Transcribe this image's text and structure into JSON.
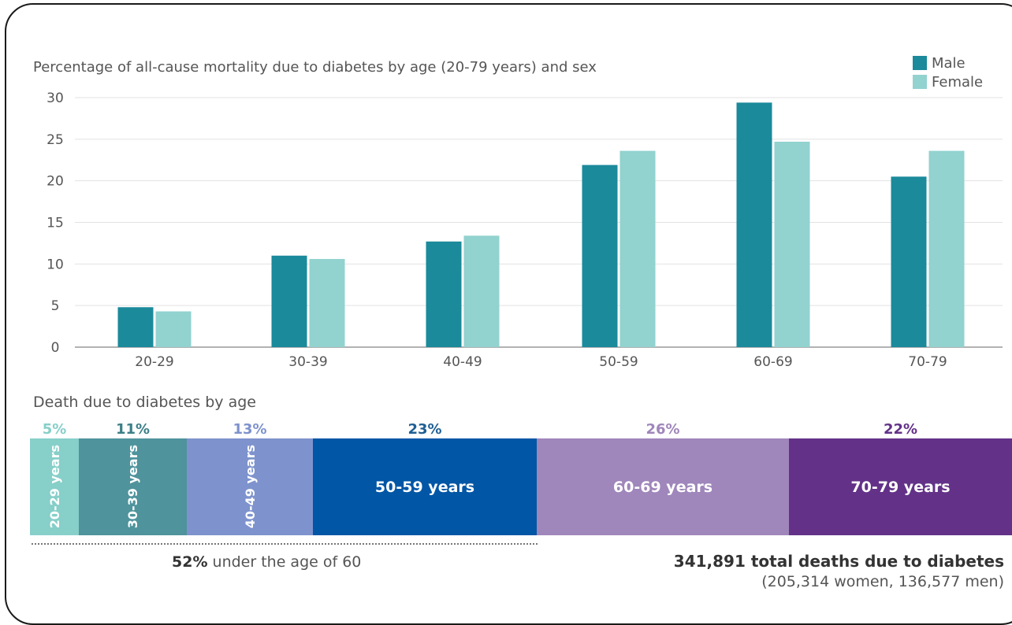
{
  "chart_data": {
    "type": "bar",
    "title": "Percentage of all-cause mortality due to diabetes by age (20-79 years) and sex",
    "categories": [
      "20-29",
      "30-39",
      "40-49",
      "50-59",
      "60-69",
      "70-79"
    ],
    "series": [
      {
        "name": "Male",
        "color": "#1b8a9b",
        "values": [
          4.8,
          11.0,
          12.7,
          21.9,
          29.4,
          20.5
        ]
      },
      {
        "name": "Female",
        "color": "#92d2cf",
        "values": [
          4.3,
          10.6,
          13.4,
          23.6,
          24.7,
          23.6
        ]
      }
    ],
    "yticks": [
      "0",
      "5",
      "10",
      "15",
      "20",
      "25",
      "30"
    ],
    "ylim": [
      0,
      30
    ],
    "grid": true,
    "legend": "top-right"
  },
  "breakdown": {
    "title": "Death due to diabetes by age",
    "segments": [
      {
        "pct": "5%",
        "label": "20-29 years",
        "share": 0.05,
        "color": "#87cfc9",
        "pct_color": "#87cfc9"
      },
      {
        "pct": "11%",
        "label": "30-39 years",
        "share": 0.11,
        "color": "#4f939c",
        "pct_color": "#3c7f88"
      },
      {
        "pct": "13%",
        "label": "40-49 years",
        "share": 0.13,
        "color": "#7e93cd",
        "pct_color": "#7e93cd"
      },
      {
        "pct": "23%",
        "label": "50-59 years",
        "share": 0.23,
        "color": "#0256a6",
        "pct_color": "#1f5f94"
      },
      {
        "pct": "26%",
        "label": "60-69 years",
        "share": 0.26,
        "color": "#9f86bb",
        "pct_color": "#9f86bb"
      },
      {
        "pct": "22%",
        "label": "70-79 years",
        "share": 0.22,
        "color": "#633288",
        "pct_color": "#633288"
      }
    ],
    "under60_pct": "52%",
    "under60_text": "under the age of 60",
    "total_text": "341,891 total deaths due to diabetes",
    "split_text": "(205,314 women, 136,577 men)"
  }
}
